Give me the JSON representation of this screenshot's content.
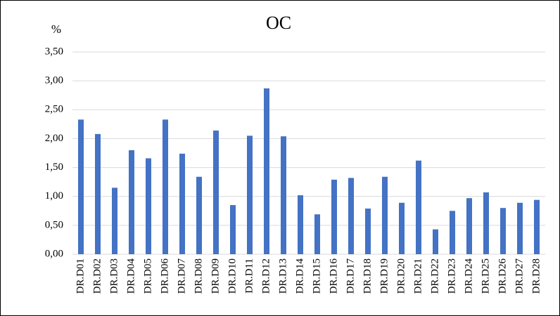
{
  "chart_data": {
    "type": "bar",
    "title": "OC",
    "y_label": "%",
    "categories": [
      "DR.D01",
      "DR.D02",
      "DR.D03",
      "DR.D04",
      "DR.D05",
      "DR.D06",
      "DR.D07",
      "DR.D08",
      "DR.D09",
      "DR.D10",
      "DR.D11",
      "DR.D12",
      "DR.D13",
      "DR.D14",
      "DR.D15",
      "DR.D16",
      "DR.D17",
      "DR.D18",
      "DR.D19",
      "DR.D20",
      "DR.D21",
      "DR.D22",
      "DR.D23",
      "DR.D24",
      "DR.D25",
      "DR.D26",
      "DR.D27",
      "DR.D28"
    ],
    "values": [
      2.33,
      2.08,
      1.15,
      1.8,
      1.66,
      2.33,
      1.74,
      1.34,
      2.14,
      0.85,
      2.05,
      2.87,
      2.04,
      1.02,
      0.69,
      1.29,
      1.32,
      0.79,
      1.34,
      0.89,
      1.62,
      0.43,
      0.75,
      0.97,
      1.07,
      0.8,
      0.89,
      0.94
    ],
    "color": "#4472c4",
    "ylim": [
      0,
      3.5
    ],
    "yticks": [
      {
        "value": 0,
        "label": "0,00"
      },
      {
        "value": 0.5,
        "label": "0,50"
      },
      {
        "value": 1,
        "label": "1,00"
      },
      {
        "value": 1.5,
        "label": "1,50"
      },
      {
        "value": 2,
        "label": "2,00"
      },
      {
        "value": 2.5,
        "label": "2,50"
      },
      {
        "value": 3,
        "label": "3,00"
      },
      {
        "value": 3.5,
        "label": "3,50"
      }
    ],
    "grid": true
  }
}
